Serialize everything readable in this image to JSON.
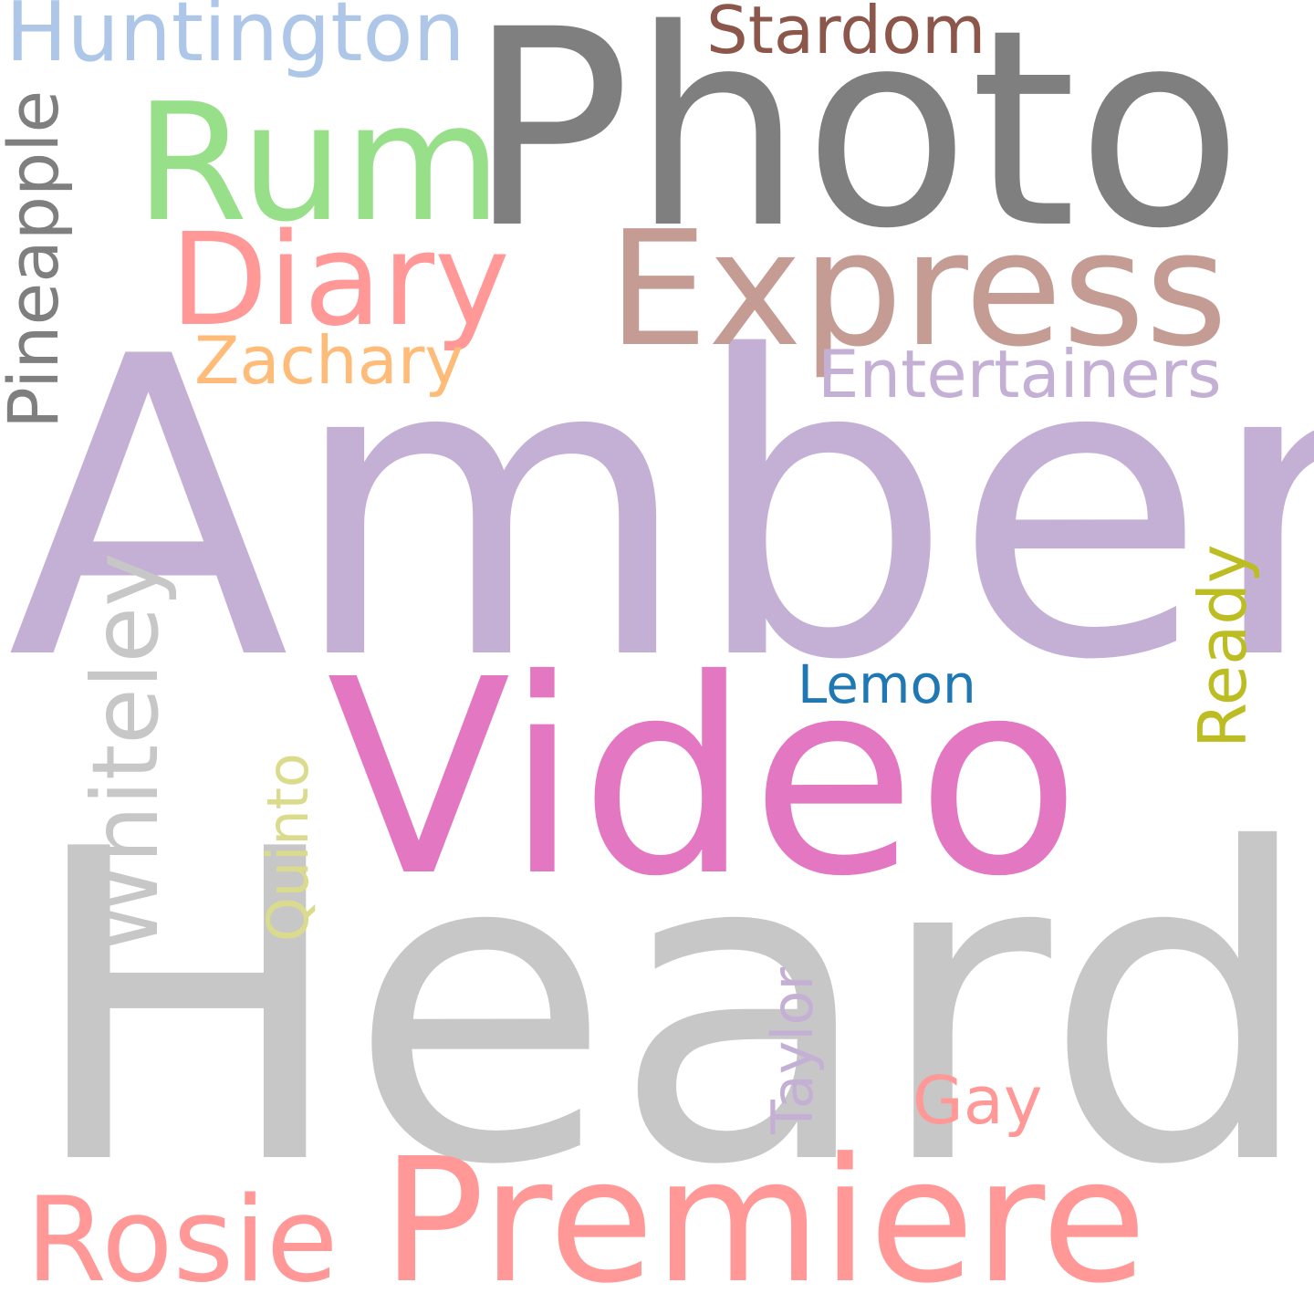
{
  "words": [
    {
      "id": "heard",
      "text": "Heard",
      "color": "#c7c7c7",
      "rotated": false
    },
    {
      "id": "amber",
      "text": "Amber",
      "color": "#c5b0d5",
      "rotated": false
    },
    {
      "id": "photo",
      "text": "Photo",
      "color": "#7f7f7f",
      "rotated": false
    },
    {
      "id": "video",
      "text": "Video",
      "color": "#e377c2",
      "rotated": false
    },
    {
      "id": "premiere",
      "text": "Premiere",
      "color": "#ff9896",
      "rotated": false
    },
    {
      "id": "express",
      "text": "Express",
      "color": "#c49c94",
      "rotated": false
    },
    {
      "id": "rum",
      "text": "Rum",
      "color": "#98df8a",
      "rotated": false
    },
    {
      "id": "diary",
      "text": "Diary",
      "color": "#ff9896",
      "rotated": false
    },
    {
      "id": "rosie",
      "text": "Rosie",
      "color": "#ff9896",
      "rotated": false
    },
    {
      "id": "huntington",
      "text": "Huntington",
      "color": "#aec7e8",
      "rotated": false
    },
    {
      "id": "whiteley",
      "text": "Whiteley",
      "color": "#c7c7c7",
      "rotated": true
    },
    {
      "id": "pineapple",
      "text": "Pineapple",
      "color": "#7f7f7f",
      "rotated": true
    },
    {
      "id": "entertainers",
      "text": "Entertainers",
      "color": "#c5b0d5",
      "rotated": false
    },
    {
      "id": "stardom",
      "text": "Stardom",
      "color": "#8c564b",
      "rotated": false
    },
    {
      "id": "zachary",
      "text": "Zachary",
      "color": "#ffbb78",
      "rotated": false
    },
    {
      "id": "ready",
      "text": "Ready",
      "color": "#bcbd22",
      "rotated": true
    },
    {
      "id": "quinto",
      "text": "Quinto",
      "color": "#dbdb8d",
      "rotated": true
    },
    {
      "id": "taylor",
      "text": "Taylor",
      "color": "#c5b0d5",
      "rotated": true
    },
    {
      "id": "gay",
      "text": "Gay",
      "color": "#ff9896",
      "rotated": false
    },
    {
      "id": "lemon",
      "text": "Lemon",
      "color": "#1f77b4",
      "rotated": false
    }
  ]
}
